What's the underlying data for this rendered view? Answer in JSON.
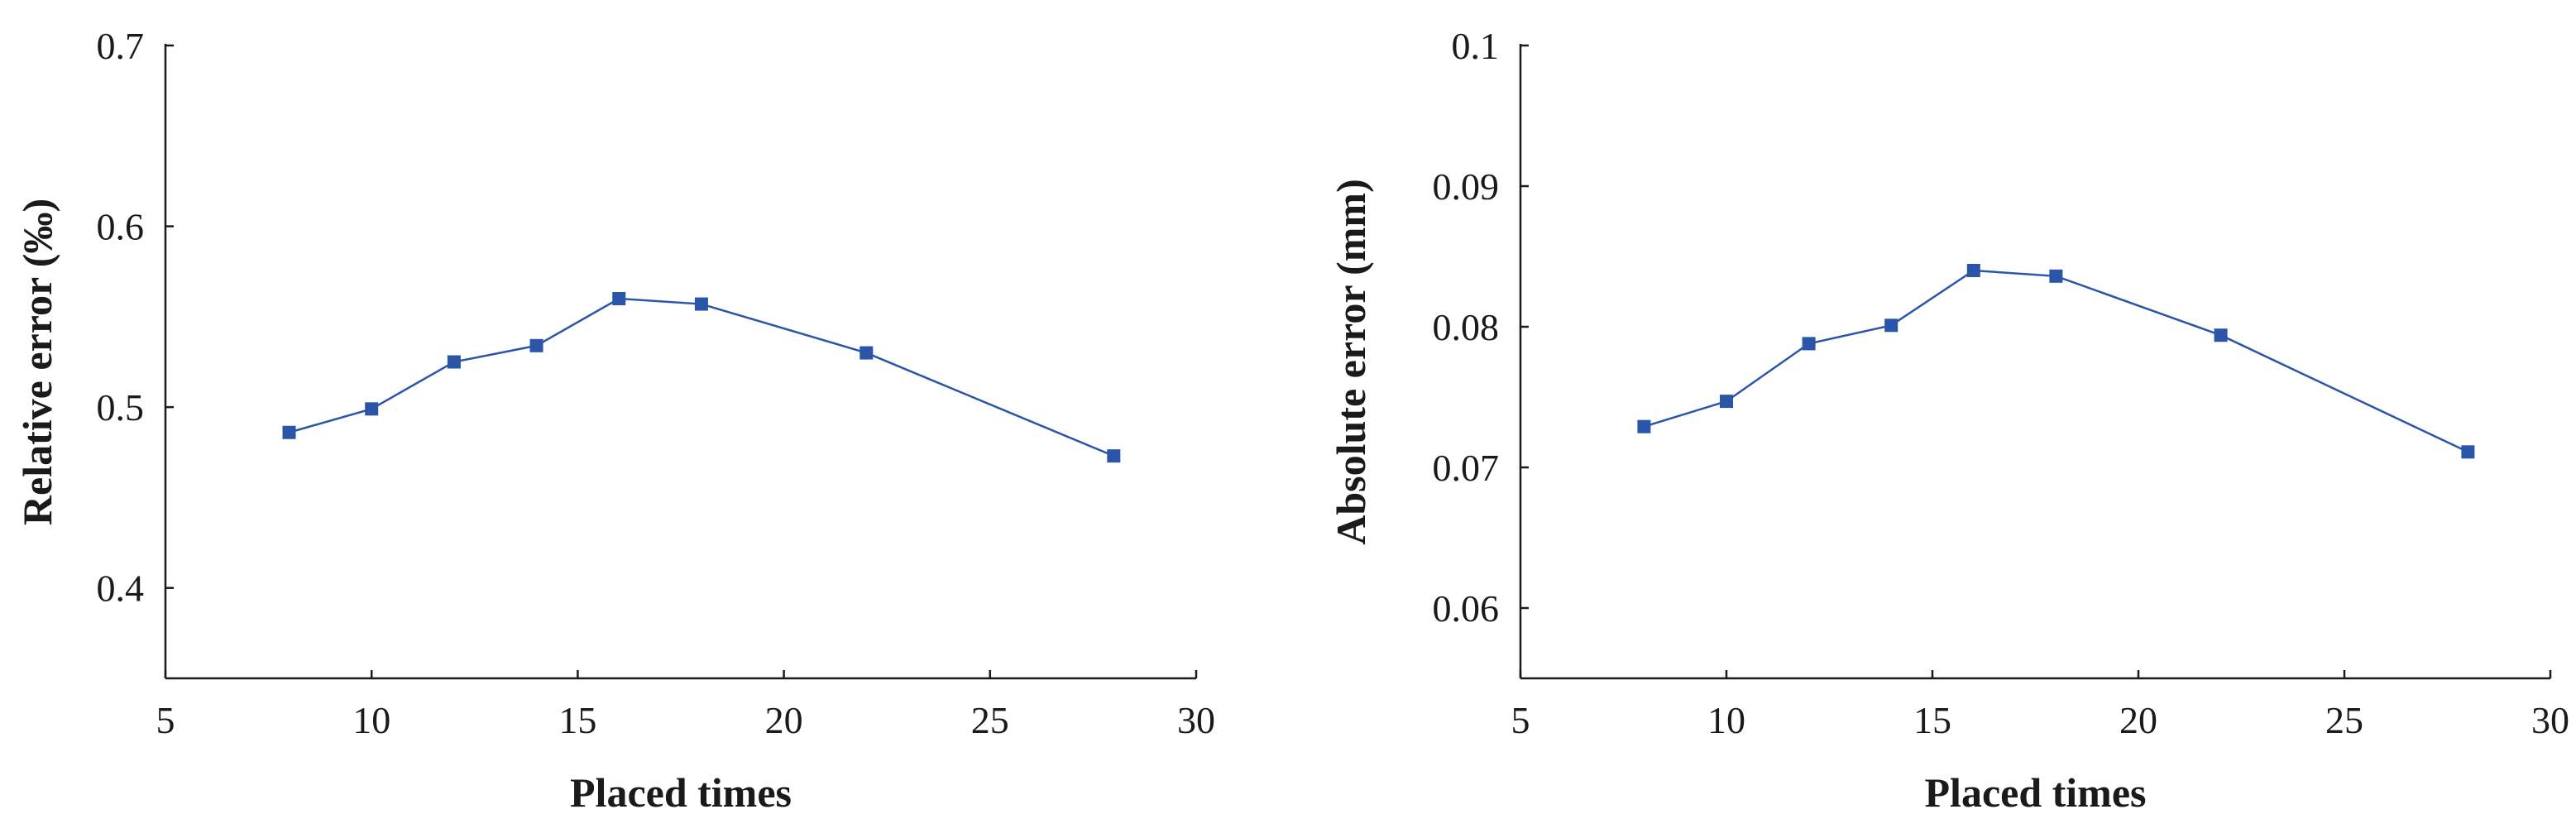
{
  "chart_data": [
    {
      "type": "line",
      "title": "",
      "xlabel": "Placed times",
      "ylabel": "Relative error (‰)",
      "xlim": [
        5,
        30
      ],
      "ylim": [
        0.35,
        0.7
      ],
      "x_ticks": [
        "5",
        "10",
        "15",
        "20",
        "25",
        "30"
      ],
      "y_ticks": [
        "0.4",
        "0.5",
        "0.6",
        "0.7"
      ],
      "x_tick_values": [
        5,
        10,
        15,
        20,
        25,
        30
      ],
      "y_tick_values": [
        0.4,
        0.5,
        0.6,
        0.7
      ],
      "grid": false,
      "series": [
        {
          "color": "#2a55a8",
          "marker": "square",
          "x": [
            8,
            10,
            12,
            14,
            16,
            18,
            22,
            28
          ],
          "y": [
            0.486,
            0.499,
            0.525,
            0.534,
            0.56,
            0.557,
            0.53,
            0.473
          ]
        }
      ]
    },
    {
      "type": "line",
      "title": "",
      "xlabel": "Placed times",
      "ylabel": "Absolute error (mm)",
      "xlim": [
        5,
        30
      ],
      "ylim": [
        0.055,
        0.1
      ],
      "x_ticks": [
        "5",
        "10",
        "15",
        "20",
        "25",
        "30"
      ],
      "y_ticks": [
        "0.06",
        "0.07",
        "0.08",
        "0.09",
        "0.1"
      ],
      "x_tick_values": [
        5,
        10,
        15,
        20,
        25,
        30
      ],
      "y_tick_values": [
        0.06,
        0.07,
        0.08,
        0.09,
        0.1
      ],
      "grid": false,
      "series": [
        {
          "color": "#2a55a8",
          "marker": "square",
          "x": [
            8,
            10,
            12,
            14,
            16,
            18,
            22,
            28
          ],
          "y": [
            0.0729,
            0.0747,
            0.0788,
            0.0801,
            0.084,
            0.0836,
            0.0794,
            0.0711
          ]
        }
      ]
    }
  ]
}
